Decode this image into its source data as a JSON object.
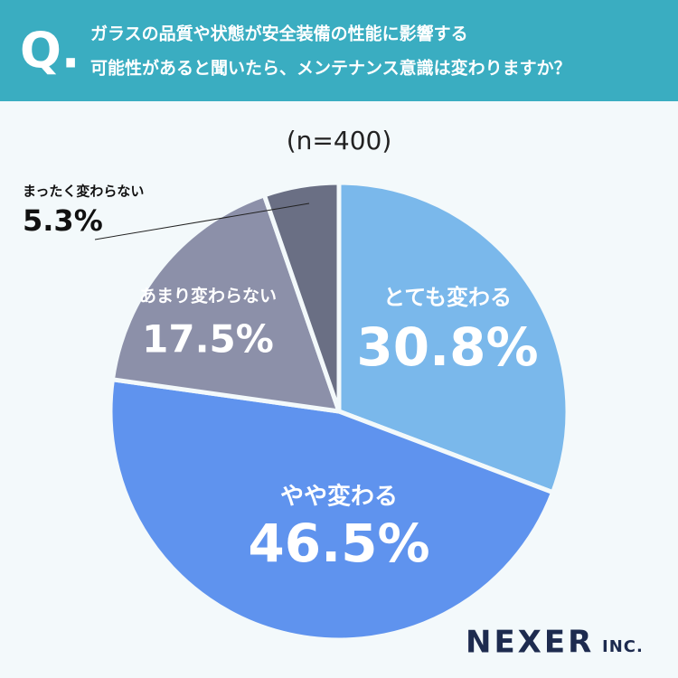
{
  "chart_data": {
    "type": "pie",
    "question_mark": "Q.",
    "title": [
      "ガラスの品質や状態が安全装備の性能に影響する",
      "可能性があると聞いたら、メンテナンス意識は変わりますか？"
    ],
    "subtitle": "(n=400)",
    "categories": [
      "とても変わる",
      "やや変わる",
      "あまり変わらない",
      "まったく変わらない"
    ],
    "values": [
      30.8,
      46.5,
      17.5,
      5.3
    ],
    "value_labels": [
      "30.8%",
      "46.5%",
      "17.5%",
      "5.3%"
    ],
    "colors": [
      "#7ab8eb",
      "#5f93ee",
      "#8c90a9",
      "#6a6f84"
    ],
    "brand": "NEXER",
    "brand_suffix": "INC."
  }
}
